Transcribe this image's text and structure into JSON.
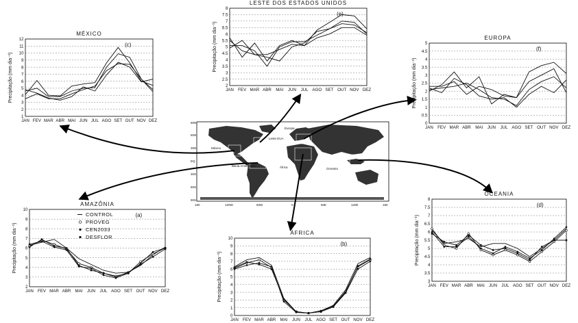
{
  "chart_data": [
    {
      "id": "mexico",
      "type": "line",
      "title": "MÉXICO",
      "tag": "(c)",
      "ylabel": "Precipitação (mm dia⁻¹)",
      "ylim": [
        1,
        12
      ],
      "yticks": [
        1,
        2,
        3,
        4,
        5,
        6,
        7,
        8,
        9,
        10,
        11,
        12
      ],
      "categories": [
        "JAN",
        "FEV",
        "MAR",
        "ABR",
        "MAI",
        "JUN",
        "JUL",
        "AGO",
        "SET",
        "OUT",
        "NOV",
        "DEZ"
      ],
      "series": [
        {
          "values": [
            4.1,
            6.1,
            4.0,
            3.9,
            5.3,
            5.6,
            5.8,
            8.6,
            10.8,
            8.6,
            6.0,
            5.4
          ]
        },
        {
          "values": [
            4.6,
            5.0,
            3.8,
            3.8,
            4.6,
            5.0,
            5.1,
            8.0,
            9.9,
            9.4,
            6.3,
            4.5
          ]
        },
        {
          "values": [
            3.5,
            4.2,
            3.5,
            3.5,
            4.2,
            4.8,
            5.3,
            7.5,
            8.5,
            8.4,
            6.3,
            4.8
          ]
        },
        {
          "values": [
            4.8,
            4.3,
            3.6,
            3.3,
            3.8,
            5.2,
            4.6,
            6.9,
            8.7,
            8.0,
            5.9,
            6.3
          ]
        }
      ]
    },
    {
      "id": "leste_eua",
      "type": "line",
      "title": "LESTE DOS ESTADOS UNIDOS",
      "tag": "(e)",
      "ylabel": "Precipitação (mm dia⁻¹)",
      "ylim": [
        2,
        8
      ],
      "yticks": [
        2,
        2.5,
        3,
        3.5,
        4,
        4.5,
        5,
        5.5,
        6,
        6.5,
        7,
        7.5,
        8
      ],
      "categories": [
        "JAN",
        "FEV",
        "MAR",
        "ABR",
        "MAI",
        "JUN",
        "JUL",
        "AGO",
        "SET",
        "OUT",
        "NOV",
        "DEZ"
      ],
      "series": [
        {
          "values": [
            5.7,
            4.2,
            5.3,
            3.9,
            5.1,
            5.5,
            5.1,
            6.3,
            6.9,
            7.5,
            7.4,
            6.4
          ]
        },
        {
          "values": [
            5.1,
            5.1,
            4.7,
            3.5,
            5.0,
            5.4,
            5.4,
            5.9,
            6.4,
            7.0,
            6.9,
            6.0
          ]
        },
        {
          "values": [
            4.9,
            5.5,
            4.4,
            4.4,
            4.8,
            5.2,
            5.1,
            5.7,
            6.0,
            6.5,
            6.5,
            5.9
          ]
        },
        {
          "values": [
            5.5,
            4.7,
            4.4,
            4.2,
            3.9,
            5.0,
            5.3,
            6.2,
            6.4,
            6.8,
            6.7,
            6.1
          ]
        }
      ]
    },
    {
      "id": "europa",
      "type": "line",
      "title": "EUROPA",
      "tag": "(f)",
      "ylabel": "Precipitação (mm dia⁻¹)",
      "ylim": [
        0,
        5
      ],
      "yticks": [
        0,
        0.5,
        1,
        1.5,
        2,
        2.5,
        3,
        3.5,
        4,
        4.5,
        5
      ],
      "categories": [
        "JAN",
        "FEV",
        "MAR",
        "ABR",
        "MAI",
        "JUN",
        "JUL",
        "AGO",
        "SET",
        "OUT",
        "NOV",
        "DEZ"
      ],
      "series": [
        {
          "values": [
            2.0,
            2.4,
            3.2,
            2.2,
            2.9,
            1.2,
            1.8,
            1.6,
            3.2,
            3.6,
            3.8,
            3.1
          ]
        },
        {
          "values": [
            2.3,
            2.3,
            2.6,
            1.8,
            2.3,
            2.1,
            1.7,
            1.6,
            2.6,
            3.0,
            3.4,
            1.9
          ]
        },
        {
          "values": [
            2.1,
            2.2,
            2.3,
            2.5,
            2.1,
            1.6,
            1.5,
            1.1,
            2.1,
            2.6,
            2.9,
            2.2
          ]
        },
        {
          "values": [
            2.2,
            1.9,
            2.8,
            2.4,
            1.7,
            1.5,
            1.6,
            1.0,
            1.8,
            2.3,
            1.9,
            2.7
          ]
        }
      ]
    },
    {
      "id": "amazonia",
      "type": "line",
      "title": "AMAZÔNIA",
      "tag": "(a)",
      "ylabel": "Precipitação (mm dia⁻¹)",
      "ylim": [
        2,
        10
      ],
      "yticks": [
        2,
        3,
        4,
        5,
        6,
        7,
        8,
        9,
        10
      ],
      "categories": [
        "JAN",
        "FEV",
        "MAR",
        "ABR",
        "MAI",
        "JUN",
        "JUL",
        "AGO",
        "SET",
        "OUT",
        "NOV",
        "DEZ"
      ],
      "legend": [
        "CONTROL",
        "PROVEG",
        "CEN2033",
        "DESFLOR"
      ],
      "series": [
        {
          "name": "CONTROL",
          "values": [
            6.3,
            6.6,
            6.9,
            6.0,
            4.9,
            4.3,
            3.7,
            3.4,
            3.5,
            4.2,
            5.3,
            6.1
          ]
        },
        {
          "name": "PROVEG",
          "values": [
            6.2,
            6.8,
            6.4,
            5.9,
            4.4,
            4.0,
            3.4,
            3.1,
            3.4,
            4.6,
            5.4,
            6.0
          ]
        },
        {
          "name": "CEN2033",
          "values": [
            6.4,
            6.7,
            6.1,
            5.8,
            4.1,
            3.9,
            3.2,
            2.9,
            3.4,
            4.4,
            5.6,
            6.0
          ]
        },
        {
          "name": "DESFLOR",
          "values": [
            6.1,
            6.9,
            6.2,
            6.0,
            4.2,
            3.7,
            3.4,
            3.0,
            3.5,
            4.3,
            5.1,
            5.9
          ]
        }
      ]
    },
    {
      "id": "africa",
      "type": "line",
      "title": "ÁFRICA",
      "tag": "(b)",
      "ylabel": "Precipitação (mm dia⁻¹)",
      "ylim": [
        0,
        10
      ],
      "yticks": [
        0,
        1,
        2,
        3,
        4,
        5,
        6,
        7,
        8,
        9,
        10
      ],
      "categories": [
        "JAN",
        "FEV",
        "MAR",
        "ABR",
        "MAI",
        "JUN",
        "JUL",
        "AGO",
        "SET",
        "OUT",
        "NOV",
        "DEZ"
      ],
      "series": [
        {
          "values": [
            6.3,
            7.2,
            7.5,
            6.5,
            2.2,
            0.5,
            0.3,
            0.6,
            1.3,
            3.3,
            6.7,
            7.5
          ]
        },
        {
          "values": [
            6.1,
            6.8,
            7.2,
            6.2,
            2.0,
            0.5,
            0.3,
            0.5,
            1.2,
            3.1,
            6.3,
            7.2
          ]
        },
        {
          "values": [
            6.0,
            6.5,
            6.8,
            6.3,
            1.8,
            0.4,
            0.3,
            0.5,
            1.1,
            2.9,
            6.0,
            7.0
          ]
        },
        {
          "values": [
            6.2,
            6.9,
            6.6,
            6.0,
            2.1,
            0.5,
            0.3,
            0.6,
            1.2,
            3.0,
            6.4,
            7.3
          ]
        }
      ]
    },
    {
      "id": "oceania",
      "type": "line",
      "title": "OCEANIA",
      "tag": "(d)",
      "ylabel": "Precipitação (mm dia⁻¹)",
      "ylim": [
        3,
        8
      ],
      "yticks": [
        3,
        3.5,
        4,
        4.5,
        5,
        5.5,
        6,
        6.5,
        7,
        7.5,
        8
      ],
      "categories": [
        "JAN",
        "FEV",
        "MAR",
        "ABR",
        "MAI",
        "JUN",
        "JUL",
        "AGO",
        "SET",
        "OUT",
        "NOV",
        "DEZ"
      ],
      "series": [
        {
          "values": [
            6.1,
            5.3,
            5.4,
            5.6,
            5.1,
            5.3,
            5.3,
            5.0,
            4.5,
            5.0,
            5.5,
            6.2
          ]
        },
        {
          "values": [
            6.2,
            5.2,
            5.0,
            5.9,
            4.9,
            4.6,
            4.9,
            4.6,
            4.2,
            4.8,
            5.4,
            6.1
          ]
        },
        {
          "values": [
            6.0,
            5.1,
            5.1,
            5.7,
            5.0,
            4.7,
            5.1,
            4.8,
            4.4,
            4.9,
            5.6,
            6.3
          ]
        },
        {
          "values": [
            5.9,
            5.4,
            5.2,
            5.8,
            5.2,
            4.9,
            5.0,
            4.7,
            4.3,
            5.1,
            5.5,
            5.5
          ]
        }
      ]
    }
  ],
  "map": {
    "lat_labels": [
      "90N",
      "60N",
      "30N",
      "EQ",
      "30S",
      "60S",
      "90S"
    ],
    "lon_labels": [
      "180",
      "120W",
      "60W",
      "0",
      "60E",
      "120E",
      "180"
    ],
    "region_labels": [
      "Europa",
      "Leste EUA",
      "México",
      "Bacia Amazônica",
      "África",
      "Oceania"
    ]
  }
}
